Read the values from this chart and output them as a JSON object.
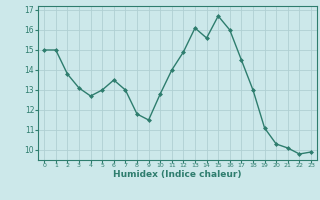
{
  "x": [
    0,
    1,
    2,
    3,
    4,
    5,
    6,
    7,
    8,
    9,
    10,
    11,
    12,
    13,
    14,
    15,
    16,
    17,
    18,
    19,
    20,
    21,
    22,
    23
  ],
  "y": [
    15.0,
    15.0,
    13.8,
    13.1,
    12.7,
    13.0,
    13.5,
    13.0,
    11.8,
    11.5,
    12.8,
    14.0,
    14.9,
    16.1,
    15.6,
    16.7,
    16.0,
    14.5,
    13.0,
    11.1,
    10.3,
    10.1,
    9.8,
    9.9
  ],
  "line_color": "#2e7d6e",
  "marker": "D",
  "marker_size": 2.0,
  "bg_color": "#cce8ea",
  "grid_color": "#b0d0d3",
  "xlabel": "Humidex (Indice chaleur)",
  "xlim": [
    -0.5,
    23.5
  ],
  "ylim": [
    9.5,
    17.2
  ],
  "yticks": [
    10,
    11,
    12,
    13,
    14,
    15,
    16,
    17
  ],
  "xticks": [
    0,
    1,
    2,
    3,
    4,
    5,
    6,
    7,
    8,
    9,
    10,
    11,
    12,
    13,
    14,
    15,
    16,
    17,
    18,
    19,
    20,
    21,
    22,
    23
  ]
}
